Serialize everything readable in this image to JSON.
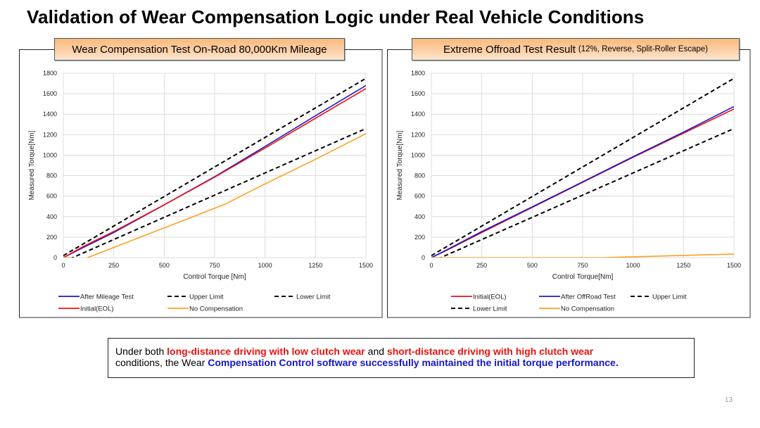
{
  "slide": {
    "title": "Validation of Wear Compensation Logic under Real Vehicle Conditions",
    "page_number": "13"
  },
  "summary": {
    "parts": [
      {
        "text": "Under both ",
        "style": "normal"
      },
      {
        "text": "long-distance driving with low clutch wear",
        "style": "red"
      },
      {
        "text": " and ",
        "style": "normal"
      },
      {
        "text": "short-distance driving with high clutch wear",
        "style": "red"
      },
      {
        "text": " conditions, the Wear ",
        "style": "normal"
      },
      {
        "text": "Compensation Control software successfully maintained the initial torque performance.",
        "style": "blue"
      }
    ]
  },
  "colors": {
    "red": "#ee1111",
    "blue": "#1a1acc",
    "orange": "#ffa020",
    "black": "#000000",
    "grid": "#dcdcdc"
  },
  "chart_data": [
    {
      "type": "line",
      "title": "Wear Compensation Test On-Road 80,000Km Mileage",
      "title_suffix": "",
      "xlabel": "Control Torque [Nm]",
      "ylabel": "Measured Torque[Nm]",
      "xlim": [
        0,
        1500
      ],
      "ylim": [
        0,
        1800
      ],
      "xticks": [
        0,
        250,
        500,
        750,
        1000,
        1250,
        1500
      ],
      "yticks": [
        0,
        200,
        400,
        600,
        800,
        1000,
        1200,
        1400,
        1600,
        1800
      ],
      "grid": true,
      "legend_position": "bottom",
      "legend_rows": [
        [
          "After Mileage Test",
          "Upper Limit",
          "Lower Limit"
        ],
        [
          "Initial(EOL)",
          "No Compensation"
        ]
      ],
      "series": [
        {
          "name": "After Mileage Test",
          "color": "#1a1acc",
          "dash": false,
          "x": [
            0,
            100,
            250,
            500,
            750,
            1000,
            1250,
            1500
          ],
          "y": [
            0,
            100,
            245,
            515,
            790,
            1085,
            1385,
            1680
          ]
        },
        {
          "name": "Upper Limit",
          "color": "#000000",
          "dash": true,
          "x": [
            0,
            1500
          ],
          "y": [
            20,
            1750
          ]
        },
        {
          "name": "Lower Limit",
          "color": "#000000",
          "dash": true,
          "x": [
            0,
            1500
          ],
          "y": [
            -40,
            1260
          ]
        },
        {
          "name": "Initial(EOL)",
          "color": "#ee1111",
          "dash": false,
          "x": [
            0,
            100,
            250,
            500,
            750,
            1000,
            1250,
            1500
          ],
          "y": [
            0,
            110,
            255,
            515,
            785,
            1070,
            1360,
            1650
          ]
        },
        {
          "name": "No Compensation",
          "color": "#ffa020",
          "dash": false,
          "x": [
            0,
            35,
            35,
            120,
            500,
            800,
            1000,
            1250,
            1500
          ],
          "y": [
            0,
            0,
            null,
            0,
            290,
            520,
            720,
            960,
            1210
          ]
        }
      ]
    },
    {
      "type": "line",
      "title": "Extreme Offroad Test Result",
      "title_suffix": "(12%, Reverse, Split-Roller Escape)",
      "xlabel": "Control Torque[Nm]",
      "ylabel": "Measured Torque[Nm]",
      "xlim": [
        0,
        1500
      ],
      "ylim": [
        0,
        1800
      ],
      "xticks": [
        0,
        250,
        500,
        750,
        1000,
        1250,
        1500
      ],
      "yticks": [
        0,
        200,
        400,
        600,
        800,
        1000,
        1200,
        1400,
        1600,
        1800
      ],
      "grid": true,
      "legend_position": "bottom",
      "legend_rows": [
        [
          "Initial(EOL)",
          "After OffRoad Test",
          "Upper Limit"
        ],
        [
          "Lower Limit",
          "No Compensation"
        ]
      ],
      "series": [
        {
          "name": "Initial(EOL)",
          "color": "#ee1111",
          "dash": false,
          "x": [
            0,
            100,
            250,
            500,
            750,
            1000,
            1250,
            1500
          ],
          "y": [
            0,
            95,
            245,
            490,
            735,
            980,
            1215,
            1450
          ]
        },
        {
          "name": "After OffRoad Test",
          "color": "#1a1acc",
          "dash": false,
          "x": [
            0,
            100,
            250,
            500,
            750,
            1000,
            1250,
            1500
          ],
          "y": [
            0,
            100,
            255,
            495,
            740,
            985,
            1225,
            1475
          ]
        },
        {
          "name": "Upper Limit",
          "color": "#000000",
          "dash": true,
          "x": [
            0,
            1500
          ],
          "y": [
            20,
            1750
          ]
        },
        {
          "name": "Lower Limit",
          "color": "#000000",
          "dash": true,
          "x": [
            0,
            1500
          ],
          "y": [
            -40,
            1260
          ]
        },
        {
          "name": "No Compensation",
          "color": "#ffa020",
          "dash": false,
          "x": [
            0,
            250,
            500,
            750,
            850,
            1000,
            1250,
            1500
          ],
          "y": [
            0,
            0,
            0,
            0,
            0,
            8,
            22,
            35
          ]
        }
      ]
    }
  ]
}
